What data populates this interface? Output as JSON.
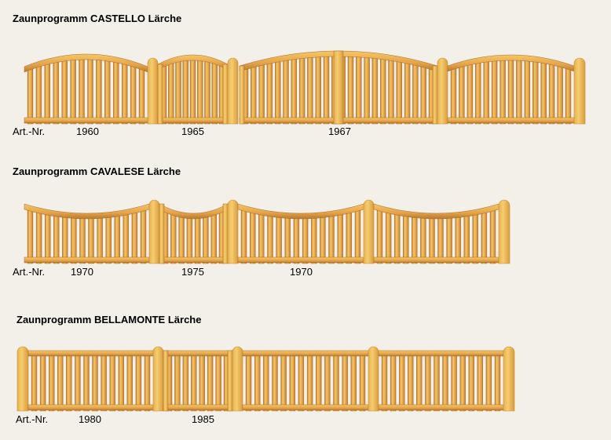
{
  "sections": [
    {
      "title": "Zaunprogramm CASTELLO Lärche",
      "art_label": "Art.-Nr.",
      "numbers": [
        "1960",
        "1965",
        "1967"
      ]
    },
    {
      "title": "Zaunprogramm CAVALESE Lärche",
      "art_label": "Art.-Nr.",
      "numbers": [
        "1970",
        "1975",
        "1970"
      ]
    },
    {
      "title": "Zaunprogramm BELLAMONTE Lärche",
      "art_label": "Art.-Nr.",
      "numbers": [
        "1980",
        "1985"
      ]
    }
  ],
  "colors": {
    "background": "#f3efe9",
    "wood_light": "#f6c667",
    "wood_mid": "#e4a34a",
    "wood_dark": "#b87a2e",
    "post": "#f5cd6f"
  }
}
